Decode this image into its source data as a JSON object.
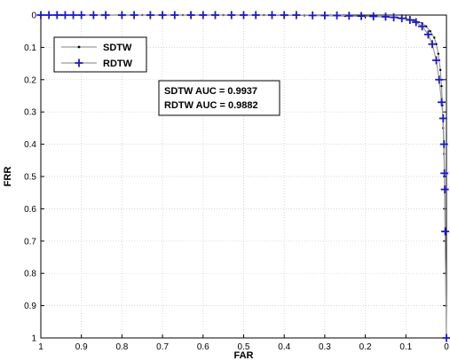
{
  "chart_data": {
    "type": "line",
    "xlabel": "FAR",
    "ylabel": "FRR",
    "xlim": [
      1,
      0
    ],
    "ylim": [
      0,
      1
    ],
    "x_reversed": true,
    "y_reversed": true,
    "grid": true,
    "legend_position": "top-left",
    "xticks": [
      "1",
      "0.9",
      "0.8",
      "0.7",
      "0.6",
      "0.5",
      "0.4",
      "0.3",
      "0.2",
      "0.1",
      "0"
    ],
    "yticks": [
      "0",
      "0.1",
      "0.2",
      "0.3",
      "0.4",
      "0.5",
      "0.6",
      "0.7",
      "0.8",
      "0.9",
      "1"
    ],
    "series": [
      {
        "name": "SDTW",
        "color": "#000000",
        "marker": "dot",
        "points": [
          [
            1.0,
            0.0
          ],
          [
            0.95,
            0.0
          ],
          [
            0.9,
            0.0
          ],
          [
            0.85,
            0.0
          ],
          [
            0.8,
            0.0
          ],
          [
            0.75,
            0.0
          ],
          [
            0.7,
            0.0
          ],
          [
            0.65,
            0.0
          ],
          [
            0.6,
            0.0
          ],
          [
            0.55,
            0.0
          ],
          [
            0.5,
            0.0
          ],
          [
            0.45,
            0.0
          ],
          [
            0.4,
            0.001
          ],
          [
            0.35,
            0.001
          ],
          [
            0.3,
            0.002
          ],
          [
            0.25,
            0.003
          ],
          [
            0.2,
            0.004
          ],
          [
            0.15,
            0.006
          ],
          [
            0.12,
            0.008
          ],
          [
            0.1,
            0.011
          ],
          [
            0.08,
            0.016
          ],
          [
            0.06,
            0.025
          ],
          [
            0.05,
            0.035
          ],
          [
            0.04,
            0.05
          ],
          [
            0.03,
            0.07
          ],
          [
            0.025,
            0.09
          ],
          [
            0.02,
            0.12
          ],
          [
            0.015,
            0.17
          ],
          [
            0.012,
            0.22
          ],
          [
            0.01,
            0.28
          ],
          [
            0.008,
            0.35
          ],
          [
            0.006,
            0.43
          ],
          [
            0.005,
            0.5
          ],
          [
            0.004,
            0.6
          ],
          [
            0.003,
            0.7
          ],
          [
            0.002,
            0.8
          ],
          [
            0.001,
            0.9
          ],
          [
            0.0,
            1.0
          ]
        ]
      },
      {
        "name": "RDTW",
        "color": "#1a1acc",
        "marker": "plus",
        "points": [
          [
            1.0,
            0.0
          ],
          [
            0.98,
            0.0
          ],
          [
            0.96,
            0.0
          ],
          [
            0.94,
            0.0
          ],
          [
            0.92,
            0.0
          ],
          [
            0.9,
            0.0
          ],
          [
            0.87,
            0.0
          ],
          [
            0.84,
            0.0
          ],
          [
            0.8,
            0.0
          ],
          [
            0.77,
            0.0
          ],
          [
            0.73,
            0.0
          ],
          [
            0.7,
            0.0
          ],
          [
            0.67,
            0.0
          ],
          [
            0.63,
            0.0
          ],
          [
            0.6,
            0.0
          ],
          [
            0.57,
            0.0
          ],
          [
            0.53,
            0.0
          ],
          [
            0.5,
            0.0
          ],
          [
            0.47,
            0.0
          ],
          [
            0.43,
            0.0
          ],
          [
            0.4,
            0.0
          ],
          [
            0.37,
            0.0
          ],
          [
            0.33,
            0.001
          ],
          [
            0.3,
            0.001
          ],
          [
            0.27,
            0.001
          ],
          [
            0.24,
            0.002
          ],
          [
            0.21,
            0.003
          ],
          [
            0.18,
            0.004
          ],
          [
            0.15,
            0.005
          ],
          [
            0.13,
            0.007
          ],
          [
            0.11,
            0.01
          ],
          [
            0.09,
            0.015
          ],
          [
            0.075,
            0.022
          ],
          [
            0.06,
            0.035
          ],
          [
            0.045,
            0.06
          ],
          [
            0.035,
            0.09
          ],
          [
            0.025,
            0.14
          ],
          [
            0.018,
            0.2
          ],
          [
            0.012,
            0.27
          ],
          [
            0.008,
            0.32
          ],
          [
            0.006,
            0.4
          ],
          [
            0.005,
            0.49
          ],
          [
            0.004,
            0.54
          ],
          [
            0.003,
            0.67
          ],
          [
            0.0,
            1.0
          ]
        ]
      }
    ],
    "annotation": {
      "lines": [
        "SDTW AUC = 0.9937",
        "RDTW AUC = 0.9882"
      ]
    }
  }
}
